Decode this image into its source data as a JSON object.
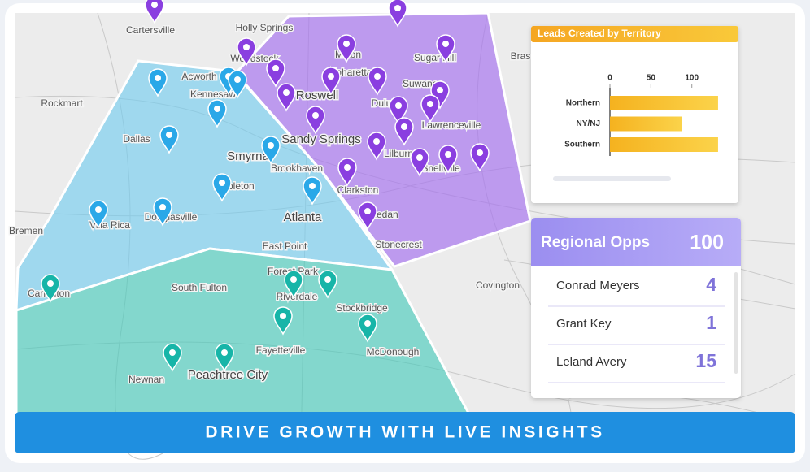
{
  "map": {
    "labels": [
      "Cartersville",
      "Holly Springs",
      "Woodstock",
      "Milton",
      "Alpharetta",
      "Sugar Hill",
      "Bras",
      "Acworth",
      "Kennesaw",
      "Roswell",
      "Suwanee",
      "Rockmart",
      "Duluth",
      "Lawrenceville",
      "Dallas",
      "Sandy Springs",
      "Smyrna",
      "Lilburn",
      "Snellville",
      "Brookhaven",
      "Mableton",
      "Clarkston",
      "Atlanta",
      "Villa Rica",
      "Douglasville",
      "Redan",
      "Bremen",
      "Stonecrest",
      "East Point",
      "Forest Park",
      "South Fulton",
      "Riverdale",
      "Carrollton",
      "Stockbridge",
      "Covington",
      "Fayetteville",
      "McDonough",
      "Newnan",
      "Peachtree City"
    ]
  },
  "chart_data": {
    "type": "bar",
    "orientation": "horizontal",
    "title": "Leads Created by Territory",
    "categories": [
      "Northern",
      "NY/NJ",
      "Southern"
    ],
    "values": [
      132,
      88,
      132
    ],
    "color": "#f7c22e",
    "xlim": [
      0,
      140
    ],
    "xticks": [
      0,
      50,
      100
    ]
  },
  "opps": {
    "title": "Regional Opps",
    "total": 100,
    "rows": [
      {
        "name": "Conrad Meyers",
        "value": 4
      },
      {
        "name": "Grant Key",
        "value": 1
      },
      {
        "name": "Leland Avery",
        "value": 15
      }
    ]
  },
  "banner": "DRIVE GROWTH WITH LIVE INSIGHTS"
}
